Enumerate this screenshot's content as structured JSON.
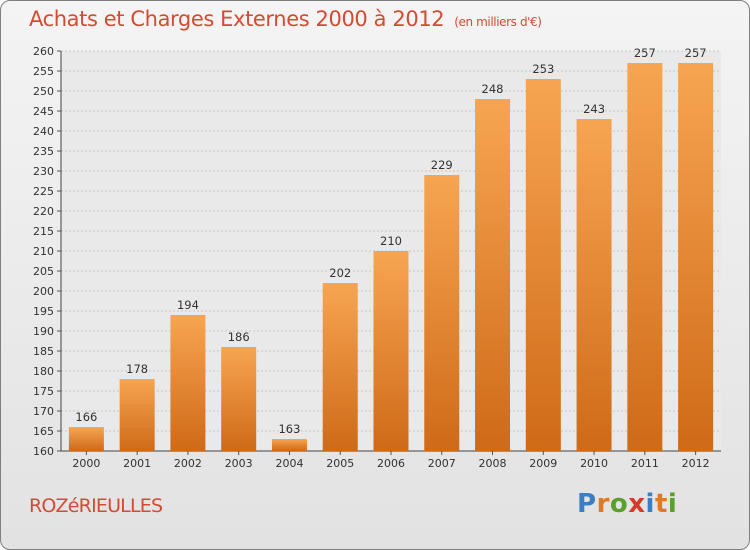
{
  "title": "Achats et Charges Externes 2000 à 2012",
  "unit_label": "(en milliers d'€)",
  "commune": "ROZéRIEULLES",
  "logo": {
    "text": "Proxiti",
    "letters": [
      "P",
      "r",
      "o",
      "x",
      "i",
      "t",
      "i"
    ],
    "colors": [
      "#3a7fc4",
      "#e07b24",
      "#5aa02c",
      "#d83a2a",
      "#3a7fc4",
      "#e07b24",
      "#5aa02c"
    ]
  },
  "colors": {
    "bar_light": "#f7a552",
    "bar_dark": "#cf6a17",
    "accent": "#d24b33"
  },
  "chart_data": {
    "type": "bar",
    "title": "Achats et Charges Externes 2000 à 2012",
    "categories": [
      "2000",
      "2001",
      "2002",
      "2003",
      "2004",
      "2005",
      "2006",
      "2007",
      "2008",
      "2009",
      "2010",
      "2011",
      "2012"
    ],
    "values": [
      166,
      178,
      194,
      186,
      163,
      202,
      210,
      229,
      248,
      253,
      243,
      257,
      257
    ],
    "ylim": [
      160,
      260
    ],
    "ytick_step": 5,
    "xlabel": "",
    "ylabel": "",
    "grid": true
  }
}
